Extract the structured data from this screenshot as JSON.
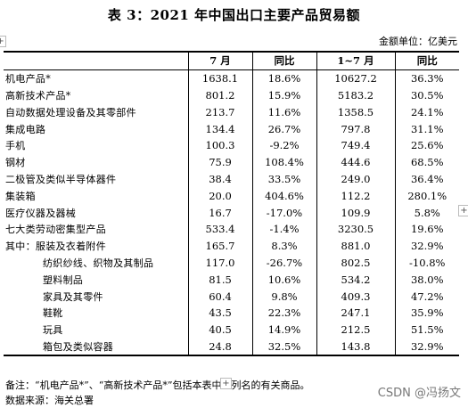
{
  "title": "表 3：2021 年中国出口主要产品贸易额",
  "unit": "金额单位：亿美元",
  "headers": [
    "",
    "7 月",
    "同比",
    "1~7 月",
    "同比"
  ],
  "rows": [
    {
      "name": "机电产品*",
      "m7": "1638.1",
      "yoy7": "18.6%",
      "ytd": "10627.2",
      "yoyytd": "36.3%",
      "sub": false
    },
    {
      "name": "高新技术产品*",
      "m7": "801.2",
      "yoy7": "15.9%",
      "ytd": "5183.2",
      "yoyytd": "30.5%",
      "sub": false
    },
    {
      "name": "自动数据处理设备及其零部件",
      "m7": "213.7",
      "yoy7": "11.6%",
      "ytd": "1358.5",
      "yoyytd": "24.1%",
      "sub": false
    },
    {
      "name": "集成电路",
      "m7": "134.4",
      "yoy7": "26.7%",
      "ytd": "797.8",
      "yoyytd": "31.1%",
      "sub": false
    },
    {
      "name": "手机",
      "m7": "100.3",
      "yoy7": "-9.2%",
      "ytd": "749.4",
      "yoyytd": "25.6%",
      "sub": false
    },
    {
      "name": "钢材",
      "m7": "75.9",
      "yoy7": "108.4%",
      "ytd": "444.6",
      "yoyytd": "68.5%",
      "sub": false
    },
    {
      "name": "二极管及类似半导体器件",
      "m7": "38.4",
      "yoy7": "33.5%",
      "ytd": "249.0",
      "yoyytd": "36.4%",
      "sub": false
    },
    {
      "name": "集装箱",
      "m7": "20.0",
      "yoy7": "404.6%",
      "ytd": "112.2",
      "yoyytd": "280.1%",
      "sub": false
    },
    {
      "name": "医疗仪器及器械",
      "m7": "16.7",
      "yoy7": "-17.0%",
      "ytd": "109.9",
      "yoyytd": "5.8%",
      "sub": false
    },
    {
      "name": "七大类劳动密集型产品",
      "m7": "533.4",
      "yoy7": "-1.4%",
      "ytd": "3230.5",
      "yoyytd": "19.6%",
      "sub": false
    },
    {
      "name": "其中：服装及衣着附件",
      "m7": "165.7",
      "yoy7": "8.3%",
      "ytd": "881.0",
      "yoyytd": "32.9%",
      "sub": false
    },
    {
      "name": "纺织纱线、织物及其制品",
      "m7": "117.0",
      "yoy7": "-26.7%",
      "ytd": "802.5",
      "yoyytd": "-10.8%",
      "sub": true
    },
    {
      "name": "塑料制品",
      "m7": "81.5",
      "yoy7": "10.6%",
      "ytd": "534.2",
      "yoyytd": "38.0%",
      "sub": true
    },
    {
      "name": "家具及其零件",
      "m7": "60.4",
      "yoy7": "9.8%",
      "ytd": "409.3",
      "yoyytd": "47.2%",
      "sub": true
    },
    {
      "name": "鞋靴",
      "m7": "43.5",
      "yoy7": "22.3%",
      "ytd": "247.1",
      "yoyytd": "35.9%",
      "sub": true
    },
    {
      "name": "玩具",
      "m7": "40.5",
      "yoy7": "14.9%",
      "ytd": "212.5",
      "yoyytd": "51.5%",
      "sub": true
    },
    {
      "name": "箱包及类似容器",
      "m7": "24.8",
      "yoy7": "32.5%",
      "ytd": "143.8",
      "yoyytd": "32.9%",
      "sub": true
    }
  ],
  "note": "备注：“机电产品*”、“高新技术产品*”包括本表中已列名的有关商品。",
  "source": "数据来源：海关总署",
  "watermark": "CSDN @冯扬文",
  "plus_symbol": "+"
}
